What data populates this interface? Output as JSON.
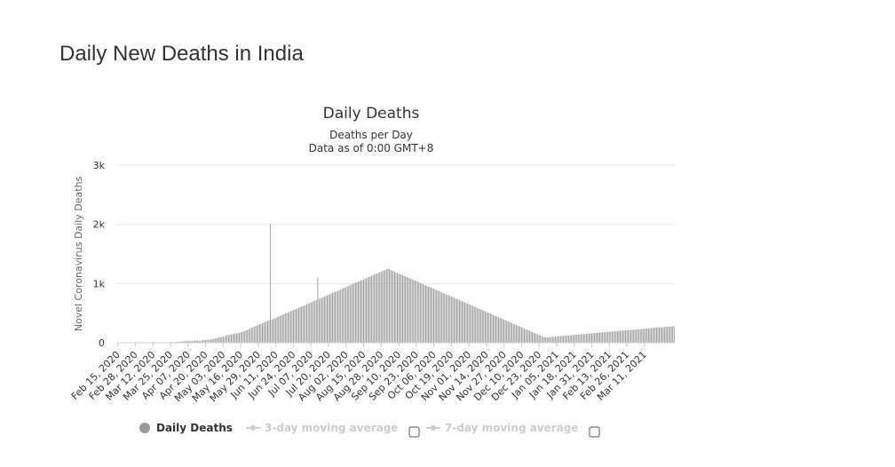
{
  "page": {
    "title": "Daily New Deaths in India"
  },
  "chart_data": {
    "type": "bar",
    "title": "Daily Deaths",
    "subtitle": "Deaths per Day",
    "subtitle2": "Data as of 0:00 GMT+8",
    "ylabel": "Novel Coronavirus Daily Deaths",
    "xlabel": "",
    "ylim": [
      0,
      3000
    ],
    "y_ticks": [
      {
        "value": 0,
        "label": "0"
      },
      {
        "value": 1000,
        "label": "1k"
      },
      {
        "value": 2000,
        "label": "2k"
      },
      {
        "value": 3000,
        "label": "3k"
      }
    ],
    "grid": true,
    "x_tick_labels": [
      "Feb 15, 2020",
      "Feb 28, 2020",
      "Mar 12, 2020",
      "Mar 25, 2020",
      "Apr 07, 2020",
      "Apr 20, 2020",
      "May 03, 2020",
      "May 16, 2020",
      "May 29, 2020",
      "Jun 11, 2020",
      "Jun 24, 2020",
      "Jul 07, 2020",
      "Jul 20, 2020",
      "Aug 02, 2020",
      "Aug 15, 2020",
      "Aug 28, 2020",
      "Sep 10, 2020",
      "Sep 23, 2020",
      "Oct 06, 2020",
      "Oct 19, 2020",
      "Nov 01, 2020",
      "Nov 14, 2020",
      "Nov 27, 2020",
      "Dec 10, 2020",
      "Dec 23, 2020",
      "Jan 05, 2021",
      "Jan 18, 2021",
      "Jan 31, 2021",
      "Feb 13, 2021",
      "Feb 26, 2021",
      "Mar 11, 2021"
    ],
    "series": [
      {
        "name": "Daily Deaths",
        "color": "#999999",
        "start_date": "Feb 15, 2020",
        "values": [
          0,
          0,
          0,
          0,
          0,
          0,
          0,
          0,
          0,
          0,
          0,
          0,
          0,
          0,
          0,
          0,
          0,
          0,
          0,
          0,
          0,
          0,
          0,
          0,
          0,
          1,
          0,
          1,
          0,
          1,
          2,
          1,
          1,
          2,
          3,
          1,
          2,
          4,
          3,
          4,
          6,
          6,
          8,
          11,
          12,
          14,
          16,
          20,
          18,
          25,
          30,
          28,
          33,
          35,
          30,
          32,
          31,
          36,
          40,
          38,
          34,
          27,
          36,
          45,
          41,
          46,
          50,
          48,
          52,
          58,
          62,
          65,
          70,
          75,
          84,
          90,
          95,
          98,
          110,
          100,
          120,
          130,
          125,
          135,
          140,
          148,
          150,
          160,
          155,
          165,
          170,
          175,
          180,
          190,
          200,
          210,
          220,
          230,
          240,
          250,
          260,
          270,
          280,
          290,
          300,
          310,
          320,
          330,
          340,
          350,
          360,
          370,
          380,
          2003,
          390,
          400,
          410,
          420,
          430,
          440,
          450,
          460,
          470,
          480,
          490,
          500,
          510,
          520,
          530,
          540,
          550,
          560,
          570,
          580,
          590,
          600,
          610,
          620,
          630,
          640,
          650,
          660,
          670,
          680,
          690,
          700,
          710,
          720,
          1100,
          740,
          750,
          760,
          770,
          780,
          790,
          800,
          810,
          820,
          830,
          840,
          850,
          860,
          870,
          880,
          890,
          900,
          910,
          920,
          930,
          940,
          950,
          960,
          970,
          980,
          990,
          1000,
          1010,
          1020,
          1030,
          1040,
          1050,
          1060,
          1070,
          1080,
          1090,
          1100,
          1110,
          1120,
          1130,
          1140,
          1150,
          1160,
          1170,
          1180,
          1190,
          1200,
          1210,
          1220,
          1230,
          1240,
          1250,
          1240,
          1230,
          1220,
          1210,
          1200,
          1190,
          1180,
          1170,
          1160,
          1150,
          1140,
          1130,
          1120,
          1110,
          1100,
          1090,
          1080,
          1070,
          1060,
          1050,
          1040,
          1030,
          1020,
          1010,
          1000,
          990,
          980,
          970,
          960,
          950,
          940,
          930,
          920,
          910,
          900,
          890,
          880,
          870,
          860,
          850,
          840,
          830,
          820,
          810,
          800,
          790,
          780,
          770,
          760,
          750,
          740,
          730,
          720,
          710,
          700,
          690,
          680,
          670,
          660,
          650,
          640,
          630,
          620,
          610,
          600,
          590,
          580,
          570,
          560,
          550,
          540,
          530,
          520,
          510,
          500,
          490,
          480,
          470,
          460,
          450,
          440,
          430,
          420,
          410,
          400,
          390,
          380,
          370,
          360,
          350,
          340,
          330,
          320,
          310,
          300,
          290,
          280,
          270,
          260,
          250,
          240,
          230,
          220,
          210,
          200,
          190,
          180,
          170,
          160,
          150,
          140,
          130,
          120,
          110,
          100,
          95,
          90,
          92,
          94,
          96,
          98,
          100,
          102,
          104,
          106,
          108,
          110,
          112,
          114,
          116,
          118,
          120,
          122,
          124,
          126,
          128,
          130,
          132,
          134,
          136,
          138,
          140,
          142,
          144,
          146,
          148,
          150,
          152,
          154,
          156,
          158,
          160,
          162,
          164,
          166,
          168,
          170,
          172,
          174,
          176,
          178,
          180,
          182,
          184,
          186,
          188,
          190,
          192,
          194,
          196,
          198,
          200,
          202,
          204,
          206,
          208,
          210,
          212,
          214,
          216,
          218,
          220,
          222,
          224,
          226,
          228,
          230,
          232,
          234,
          236,
          238,
          240,
          242,
          244,
          246,
          248,
          250,
          252,
          254,
          256,
          258,
          260,
          262,
          264,
          266,
          268,
          270,
          272,
          274,
          276,
          278,
          280
        ]
      }
    ],
    "legend": {
      "placement": "bottom-center",
      "items": [
        {
          "label": "Daily Deaths",
          "active": true,
          "color": "#999999"
        },
        {
          "label": "3-day moving average",
          "active": false,
          "color": "#cccccc"
        },
        {
          "label": "7-day moving average",
          "active": false,
          "color": "#cccccc"
        }
      ]
    }
  }
}
